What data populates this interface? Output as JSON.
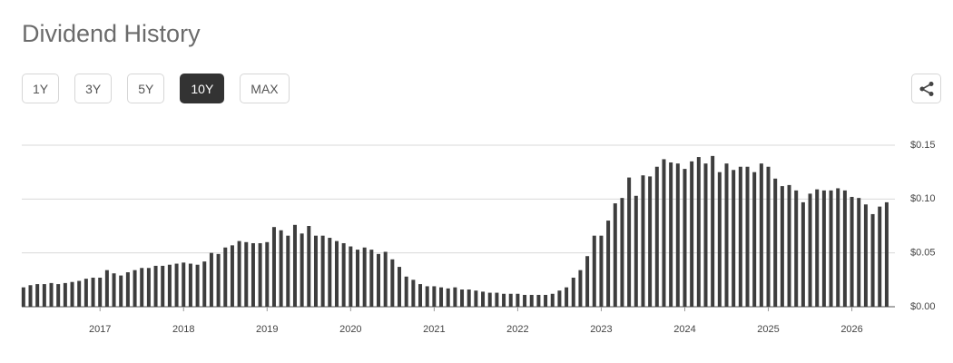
{
  "header": {
    "title": "Dividend History"
  },
  "range_buttons": [
    "1Y",
    "3Y",
    "5Y",
    "10Y",
    "MAX"
  ],
  "selected_range": "10Y",
  "chart_data": {
    "type": "bar",
    "color": "#3d3d3d",
    "grid": true,
    "categories": [
      null,
      null,
      null,
      null,
      null,
      null,
      null,
      null,
      null,
      null,
      null,
      "2017",
      null,
      null,
      null,
      null,
      null,
      null,
      null,
      null,
      null,
      null,
      null,
      "2018",
      null,
      null,
      null,
      null,
      null,
      null,
      null,
      null,
      null,
      null,
      null,
      "2019",
      null,
      null,
      null,
      null,
      null,
      null,
      null,
      null,
      null,
      null,
      null,
      "2020",
      null,
      null,
      null,
      null,
      null,
      null,
      null,
      null,
      null,
      null,
      null,
      "2021",
      null,
      null,
      null,
      null,
      null,
      null,
      null,
      null,
      null,
      null,
      null,
      "2022",
      null,
      null,
      null,
      null,
      null,
      null,
      null,
      null,
      null,
      null,
      null,
      "2023",
      null,
      null,
      null,
      null,
      null,
      null,
      null,
      null,
      null,
      null,
      null,
      "2024",
      null,
      null,
      null,
      null,
      null,
      null,
      null,
      null,
      null,
      null,
      null,
      "2025",
      null,
      null,
      null,
      null,
      null,
      null,
      null,
      null,
      null,
      null,
      null,
      "2026",
      null,
      null,
      null,
      null,
      null
    ],
    "values": [
      0.018,
      0.02,
      0.021,
      0.021,
      0.022,
      0.021,
      0.022,
      0.023,
      0.024,
      0.026,
      0.027,
      0.027,
      0.034,
      0.031,
      0.029,
      0.032,
      0.034,
      0.036,
      0.036,
      0.038,
      0.038,
      0.039,
      0.04,
      0.041,
      0.04,
      0.039,
      0.042,
      0.05,
      0.049,
      0.055,
      0.057,
      0.061,
      0.06,
      0.059,
      0.059,
      0.06,
      0.074,
      0.071,
      0.066,
      0.076,
      0.068,
      0.075,
      0.066,
      0.066,
      0.064,
      0.061,
      0.059,
      0.056,
      0.053,
      0.055,
      0.053,
      0.049,
      0.051,
      0.044,
      0.037,
      0.028,
      0.025,
      0.021,
      0.019,
      0.019,
      0.018,
      0.017,
      0.018,
      0.016,
      0.016,
      0.015,
      0.014,
      0.013,
      0.013,
      0.012,
      0.012,
      0.012,
      0.011,
      0.011,
      0.011,
      0.011,
      0.012,
      0.015,
      0.018,
      0.027,
      0.034,
      0.047,
      0.066,
      0.066,
      0.08,
      0.096,
      0.101,
      0.12,
      0.103,
      0.122,
      0.121,
      0.13,
      0.137,
      0.134,
      0.133,
      0.128,
      0.135,
      0.139,
      0.133,
      0.14,
      0.125,
      0.133,
      0.127,
      0.13,
      0.13,
      0.125,
      0.133,
      0.13,
      0.119,
      0.112,
      0.113,
      0.108,
      0.097,
      0.105,
      0.109,
      0.108,
      0.108,
      0.11,
      0.108,
      0.102,
      0.101,
      0.095,
      0.086,
      0.093,
      0.097
    ],
    "ylim": [
      0,
      0.15
    ],
    "yticks": [
      {
        "value": 0,
        "label": "$0.00"
      },
      {
        "value": 0.05,
        "label": "$0.05"
      },
      {
        "value": 0.1,
        "label": "$0.10"
      },
      {
        "value": 0.15,
        "label": "$0.15"
      }
    ]
  }
}
